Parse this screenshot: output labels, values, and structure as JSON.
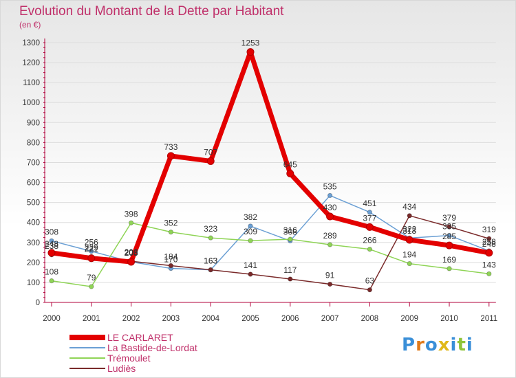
{
  "title": "Evolution du Montant de la Dette par Habitant",
  "subtitle": "(en €)",
  "brand": "Proxiti",
  "colors": {
    "title": "#c0306a",
    "axis": "#b0003a",
    "grid": "#dddddd"
  },
  "chart_data": {
    "type": "line",
    "title": "Evolution du Montant de la Dette par Habitant",
    "ylabel": "(en €)",
    "xlabel": "",
    "categories": [
      "2000",
      "2001",
      "2002",
      "2003",
      "2004",
      "2005",
      "2006",
      "2007",
      "2008",
      "2009",
      "2010",
      "2011"
    ],
    "ylim": [
      0,
      1300
    ],
    "yticks": [
      0,
      100,
      200,
      300,
      400,
      500,
      600,
      700,
      800,
      900,
      1000,
      1100,
      1200,
      1300
    ],
    "grid": true,
    "legend_position": "bottom-left",
    "series": [
      {
        "name": "LE CARLARET",
        "color": "#e30000",
        "width": 7,
        "values": [
          248,
          221,
          203,
          733,
          707,
          1253,
          645,
          430,
          377,
          313,
          285,
          248
        ]
      },
      {
        "name": "La Bastide-de-Lordat",
        "color": "#6a9fd4",
        "width": 1.5,
        "values": [
          308,
          256,
          203,
          170,
          163,
          382,
          308,
          535,
          451,
          322,
          335,
          258
        ]
      },
      {
        "name": "Trémoulet",
        "color": "#8fd456",
        "width": 1.5,
        "values": [
          108,
          79,
          398,
          352,
          323,
          309,
          316,
          289,
          266,
          194,
          169,
          143
        ]
      },
      {
        "name": "Ludiès",
        "color": "#7a2a2a",
        "width": 1.5,
        "values": [
          238,
          229,
          206,
          184,
          163,
          141,
          117,
          91,
          63,
          434,
          379,
          319
        ]
      }
    ]
  }
}
